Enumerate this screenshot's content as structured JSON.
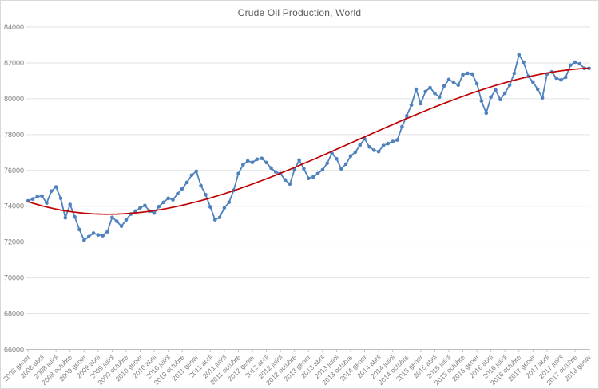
{
  "chart_data": {
    "type": "line",
    "title": "Crude Oil Production, World",
    "legend": "none",
    "grid": "horizontal",
    "ylim": [
      66000,
      84000
    ],
    "y_tick_step": 2000,
    "y_tick_labels": [
      "66000",
      "68000",
      "70000",
      "72000",
      "74000",
      "76000",
      "78000",
      "80000",
      "82000",
      "84000"
    ],
    "x_tick_labels": [
      "2008 gener",
      "2008 abril",
      "2008 juliol",
      "2008 octubre",
      "2009 gener",
      "2009 abril",
      "2009 juliol",
      "2009 octubre",
      "2010 gener",
      "2010 abril",
      "2010 juliol",
      "2010 octubre",
      "2011 gener",
      "2011 abril",
      "2011 juliol",
      "2011 octubre",
      "2012 gener",
      "2012 abril",
      "2012 juliol",
      "2012 octubre",
      "2013 gener",
      "2013 abril",
      "2013 juliol",
      "2013 octubre",
      "2014 gener",
      "2014 abril",
      "2014 juliol",
      "2014 octubre",
      "2015 gener",
      "2015 abril",
      "2015 juliol",
      "2015 octubre",
      "2016 gener",
      "2016 abril",
      "2016 juliol",
      "2016 octubre",
      "2017 gener",
      "2017 abril",
      "2017 juliol",
      "2017 octubre",
      "2018 gener"
    ],
    "x_months_per_point": 1,
    "x_ticks_every_points": 3,
    "series": [
      {
        "color": "#4F81BD",
        "marker": "circle",
        "values": [
          74300,
          74400,
          74530,
          74570,
          74180,
          74840,
          75080,
          74440,
          73350,
          74100,
          73400,
          72700,
          72100,
          72300,
          72500,
          72400,
          72360,
          72580,
          73380,
          73160,
          72890,
          73240,
          73560,
          73730,
          73910,
          74040,
          73730,
          73620,
          73980,
          74220,
          74440,
          74360,
          74700,
          74980,
          75330,
          75730,
          75950,
          75150,
          74640,
          73960,
          73250,
          73380,
          73910,
          74220,
          74890,
          75820,
          76310,
          76530,
          76450,
          76620,
          76670,
          76440,
          76130,
          75910,
          75820,
          75470,
          75240,
          76040,
          76580,
          76100,
          75560,
          75640,
          75820,
          76040,
          76400,
          76950,
          76650,
          76090,
          76350,
          76800,
          77020,
          77400,
          77760,
          77310,
          77130,
          77050,
          77390,
          77500,
          77610,
          77700,
          78440,
          79050,
          79650,
          80530,
          79730,
          80400,
          80620,
          80300,
          80090,
          80710,
          81070,
          80930,
          80760,
          81330,
          81420,
          81380,
          80840,
          79870,
          79200,
          80090,
          80490,
          79960,
          80310,
          80760,
          81420,
          82450,
          82040,
          81250,
          80930,
          80530,
          80050,
          81380,
          81500,
          81150,
          81050,
          81200,
          81870,
          82040,
          81950,
          81700,
          81700
        ]
      }
    ],
    "trendline": {
      "color": "#C00000",
      "order": 3
    }
  },
  "colors": {
    "axis": "#bfbfbf",
    "gridline": "#e2e2e2",
    "tick_label": "#808080",
    "title": "#595959",
    "series_blue": "#4F81BD",
    "trend_red": "#C00000",
    "background": "#ffffff",
    "border": "#d9d9d9"
  }
}
